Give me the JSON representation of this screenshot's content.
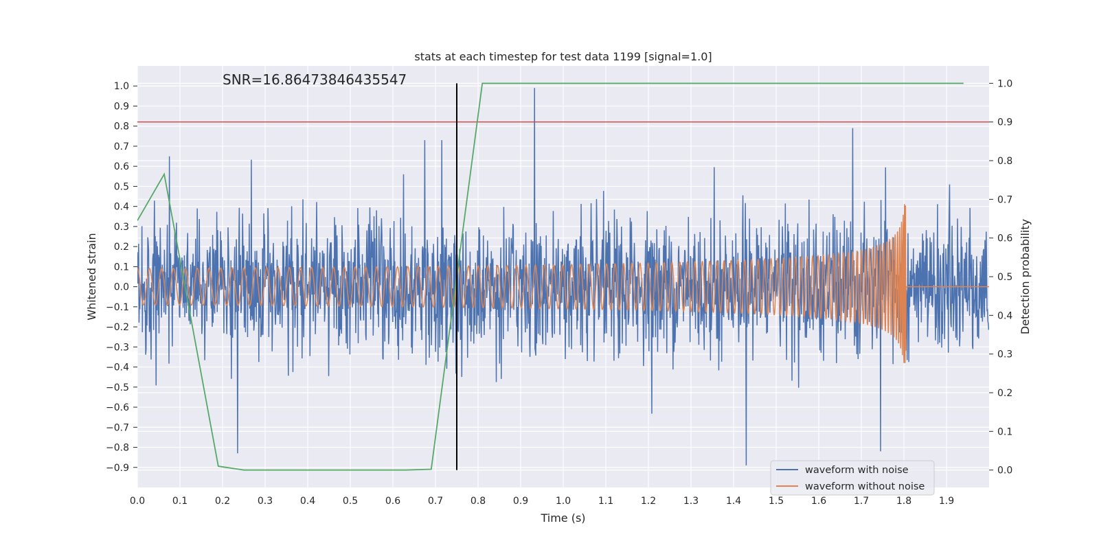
{
  "chart_data": {
    "type": "line",
    "title": "stats at each timestep for test data 1199 [signal=1.0]",
    "annotation": "SNR=16.86473846435547",
    "xlabel": "Time (s)",
    "ylabel": "Whitened strain",
    "ylabel_right": "Detection probability",
    "xlim": [
      0.0,
      2.0
    ],
    "ylim": [
      -1.0,
      1.1
    ],
    "ylim_right": [
      -0.045,
      1.045
    ],
    "x_ticks": [
      "0.0",
      "0.1",
      "0.2",
      "0.3",
      "0.4",
      "0.5",
      "0.6",
      "0.7",
      "0.8",
      "0.9",
      "1.0",
      "1.1",
      "1.2",
      "1.3",
      "1.4",
      "1.5",
      "1.6",
      "1.7",
      "1.8",
      "1.9"
    ],
    "y_ticks": [
      "1.0",
      "0.9",
      "0.8",
      "0.7",
      "0.6",
      "0.5",
      "0.4",
      "0.3",
      "0.2",
      "0.1",
      "0.0",
      "−0.1",
      "−0.2",
      "−0.3",
      "−0.4",
      "−0.5",
      "−0.6",
      "−0.7",
      "−0.8",
      "−0.9"
    ],
    "y_ticks_right": [
      "1.0",
      "0.9",
      "0.8",
      "0.7",
      "0.6",
      "0.5",
      "0.4",
      "0.3",
      "0.2",
      "0.1",
      "0.0"
    ],
    "grid": true,
    "legend_position": "lower-right",
    "series": [
      {
        "name": "waveform with noise",
        "color": "#4c72b0",
        "axis": "left",
        "approx_amplitude_std": 0.22,
        "peak_points": [
          [
            0.933,
            0.99
          ],
          [
            1.43,
            -0.89
          ],
          [
            0.235,
            -0.83
          ],
          [
            1.745,
            -0.82
          ],
          [
            0.075,
            0.65
          ],
          [
            0.625,
            0.56
          ],
          [
            0.675,
            0.73
          ],
          [
            0.715,
            0.73
          ],
          [
            1.68,
            0.79
          ]
        ]
      },
      {
        "name": "waveform without noise",
        "color": "#dd8452",
        "axis": "left",
        "chirp_start_time": 0.0,
        "merger_time": 1.805,
        "start_frequency_hz": 35,
        "peak_amplitude": 0.46,
        "min_amplitude": -0.38
      },
      {
        "name": "",
        "color": "#55a868",
        "axis": "right",
        "x": [
          0.0,
          0.063,
          0.19,
          0.25,
          0.63,
          0.69,
          0.81,
          1.94
        ],
        "y": [
          0.645,
          0.765,
          0.01,
          0.0,
          0.0,
          0.002,
          1.0,
          1.0
        ]
      }
    ],
    "reference_lines": [
      {
        "orientation": "horizontal",
        "axis": "right",
        "value": 0.9,
        "color": "#c44e52"
      },
      {
        "orientation": "vertical",
        "value": 0.75,
        "ymin_right": 0.0,
        "ymax_right": 1.0,
        "color": "#000000"
      }
    ]
  }
}
